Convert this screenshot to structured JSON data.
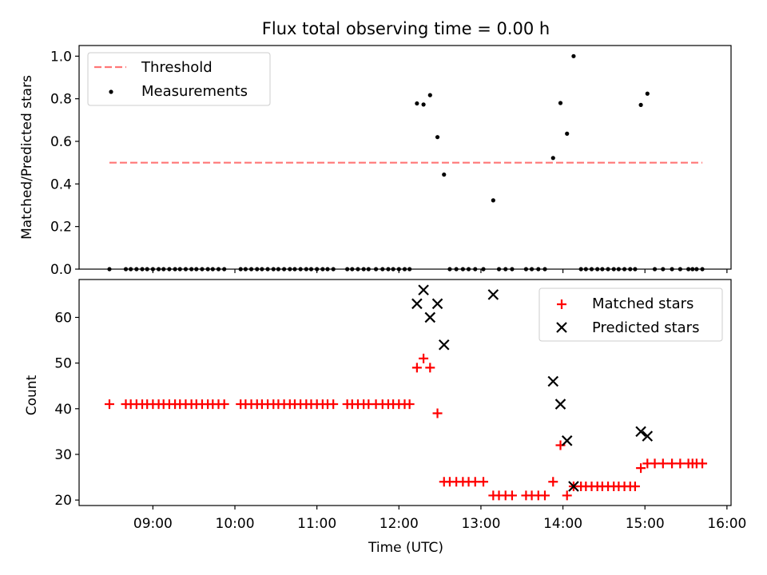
{
  "title": "Flux total observing time = 0.00 h",
  "chart_data": [
    {
      "type": "scatter",
      "name": "ratio-panel",
      "ylabel": "Matched/Predicted stars",
      "xlabel": "",
      "xlim_hours": [
        8.1,
        16.05
      ],
      "ylim": [
        0.0,
        1.05
      ],
      "yticks": [
        0.0,
        0.2,
        0.4,
        0.6,
        0.8,
        1.0
      ],
      "ytick_labels": [
        "0.0",
        "0.2",
        "0.4",
        "0.6",
        "0.8",
        "1.0"
      ],
      "legend_position": "upper-left",
      "threshold": {
        "label": "Threshold",
        "y": 0.5,
        "x_start": 8.47,
        "x_end": 15.7,
        "color": "#ff7777"
      },
      "measurements": {
        "label": "Measurements",
        "color": "#000000",
        "x": [
          8.47,
          8.67,
          8.73,
          8.8,
          8.87,
          8.93,
          9.0,
          9.07,
          9.13,
          9.2,
          9.27,
          9.33,
          9.4,
          9.47,
          9.53,
          9.6,
          9.67,
          9.73,
          9.8,
          9.87,
          10.07,
          10.13,
          10.2,
          10.27,
          10.33,
          10.4,
          10.47,
          10.53,
          10.6,
          10.67,
          10.73,
          10.8,
          10.87,
          10.93,
          11.0,
          11.07,
          11.13,
          11.2,
          11.37,
          11.43,
          11.5,
          11.57,
          11.63,
          11.72,
          11.8,
          11.87,
          11.93,
          12.0,
          12.07,
          12.13,
          12.22,
          12.3,
          12.38,
          12.47,
          12.55,
          12.62,
          12.7,
          12.78,
          12.85,
          12.93,
          13.03,
          13.15,
          13.22,
          13.3,
          13.38,
          13.55,
          13.62,
          13.7,
          13.78,
          13.88,
          13.97,
          14.05,
          14.13,
          14.22,
          14.28,
          14.35,
          14.42,
          14.48,
          14.55,
          14.62,
          14.68,
          14.75,
          14.82,
          14.88,
          14.95,
          15.03,
          15.12,
          15.22,
          15.33,
          15.43,
          15.53,
          15.58,
          15.63,
          15.7
        ],
        "y": [
          0,
          0,
          0,
          0,
          0,
          0,
          0,
          0,
          0,
          0,
          0,
          0,
          0,
          0,
          0,
          0,
          0,
          0,
          0,
          0,
          0,
          0,
          0,
          0,
          0,
          0,
          0,
          0,
          0,
          0,
          0,
          0,
          0,
          0,
          0,
          0,
          0,
          0,
          0,
          0,
          0,
          0,
          0,
          0,
          0,
          0,
          0,
          0,
          0,
          0,
          0.778,
          0.773,
          0.817,
          0.62,
          0.444,
          0,
          0,
          0,
          0,
          0,
          0,
          0.323,
          0,
          0,
          0,
          0,
          0,
          0,
          0,
          0.522,
          0.78,
          0.636,
          1.0,
          0,
          0,
          0,
          0,
          0,
          0,
          0,
          0,
          0,
          0,
          0,
          0.771,
          0.824,
          0,
          0,
          0,
          0,
          0,
          0,
          0,
          0
        ]
      }
    },
    {
      "type": "scatter",
      "name": "count-panel",
      "ylabel": "Count",
      "xlabel": "Time (UTC)",
      "xlim_hours": [
        8.1,
        16.05
      ],
      "xticks_hours": [
        9,
        10,
        11,
        12,
        13,
        14,
        15,
        16
      ],
      "xtick_labels": [
        "09:00",
        "10:00",
        "11:00",
        "12:00",
        "13:00",
        "14:00",
        "15:00",
        "16:00"
      ],
      "ylim": [
        18.8,
        68.3
      ],
      "yticks": [
        20,
        30,
        40,
        50,
        60
      ],
      "ytick_labels": [
        "20",
        "30",
        "40",
        "50",
        "60"
      ],
      "legend_position": "upper-right",
      "matched": {
        "label": "Matched stars",
        "color": "#ff0000",
        "x": [
          8.47,
          8.67,
          8.73,
          8.8,
          8.87,
          8.93,
          9.0,
          9.07,
          9.13,
          9.2,
          9.27,
          9.33,
          9.4,
          9.47,
          9.53,
          9.6,
          9.67,
          9.73,
          9.8,
          9.87,
          10.07,
          10.13,
          10.2,
          10.27,
          10.33,
          10.4,
          10.47,
          10.53,
          10.6,
          10.67,
          10.73,
          10.8,
          10.87,
          10.93,
          11.0,
          11.07,
          11.13,
          11.2,
          11.37,
          11.43,
          11.5,
          11.57,
          11.63,
          11.72,
          11.8,
          11.87,
          11.93,
          12.0,
          12.07,
          12.13,
          12.22,
          12.3,
          12.38,
          12.47,
          12.55,
          12.62,
          12.7,
          12.78,
          12.85,
          12.93,
          13.03,
          13.15,
          13.22,
          13.3,
          13.38,
          13.55,
          13.62,
          13.7,
          13.78,
          13.88,
          13.97,
          14.05,
          14.13,
          14.22,
          14.28,
          14.35,
          14.42,
          14.48,
          14.55,
          14.62,
          14.68,
          14.75,
          14.82,
          14.88,
          14.95,
          15.03,
          15.12,
          15.22,
          15.33,
          15.43,
          15.53,
          15.58,
          15.63,
          15.7
        ],
        "y": [
          41,
          41,
          41,
          41,
          41,
          41,
          41,
          41,
          41,
          41,
          41,
          41,
          41,
          41,
          41,
          41,
          41,
          41,
          41,
          41,
          41,
          41,
          41,
          41,
          41,
          41,
          41,
          41,
          41,
          41,
          41,
          41,
          41,
          41,
          41,
          41,
          41,
          41,
          41,
          41,
          41,
          41,
          41,
          41,
          41,
          41,
          41,
          41,
          41,
          41,
          49,
          51,
          49,
          39,
          24,
          24,
          24,
          24,
          24,
          24,
          24,
          21,
          21,
          21,
          21,
          21,
          21,
          21,
          21,
          24,
          32,
          21,
          23,
          23,
          23,
          23,
          23,
          23,
          23,
          23,
          23,
          23,
          23,
          23,
          27,
          28,
          28,
          28,
          28,
          28,
          28,
          28,
          28,
          28
        ]
      },
      "predicted": {
        "label": "Predicted stars",
        "color": "#000000",
        "x": [
          12.22,
          12.3,
          12.38,
          12.47,
          12.55,
          13.15,
          13.88,
          13.97,
          14.05,
          14.13,
          14.95,
          15.03
        ],
        "y": [
          63,
          66,
          60,
          63,
          54,
          65,
          46,
          41,
          33,
          23,
          35,
          34
        ]
      }
    }
  ]
}
